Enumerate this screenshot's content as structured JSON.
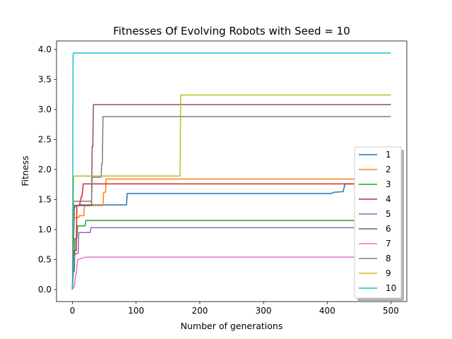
{
  "chart_data": {
    "type": "line",
    "title": "Fitnesses Of Evolving Robots with Seed = 10",
    "xlabel": "Number of generations",
    "ylabel": "Fitness",
    "xlim": [
      -25,
      525
    ],
    "ylim": [
      -0.2,
      4.14
    ],
    "xticks": [
      0,
      100,
      200,
      300,
      400,
      500
    ],
    "yticks": [
      0.0,
      0.5,
      1.0,
      1.5,
      2.0,
      2.5,
      3.0,
      3.5,
      4.0
    ],
    "xtick_labels": [
      "0",
      "100",
      "200",
      "300",
      "400",
      "500"
    ],
    "ytick_labels": [
      "0.0",
      "0.5",
      "1.0",
      "1.5",
      "2.0",
      "2.5",
      "3.0",
      "3.5",
      "4.0"
    ],
    "grid": false,
    "legend_position": "lower right",
    "series": [
      {
        "name": "1",
        "color": "#1f77b4",
        "x": [
          0,
          1,
          2,
          3,
          5,
          8,
          12,
          85,
          86,
          407,
          410,
          425,
          428,
          500
        ],
        "y": [
          0,
          0.6,
          1.0,
          1.35,
          1.4,
          1.4,
          1.41,
          1.41,
          1.6,
          1.6,
          1.62,
          1.63,
          1.76,
          1.76
        ]
      },
      {
        "name": "2",
        "color": "#ff7f0e",
        "x": [
          0,
          1,
          2,
          3,
          10,
          11,
          18,
          19,
          48,
          49,
          52,
          53,
          500
        ],
        "y": [
          0,
          0.5,
          1.05,
          1.2,
          1.2,
          1.23,
          1.23,
          1.4,
          1.4,
          1.62,
          1.62,
          1.84,
          1.84
        ]
      },
      {
        "name": "3",
        "color": "#2ca02c",
        "x": [
          0,
          1,
          3,
          4,
          7,
          8,
          20,
          21,
          500
        ],
        "y": [
          0,
          0.3,
          0.3,
          0.85,
          0.85,
          1.06,
          1.06,
          1.15,
          1.15
        ]
      },
      {
        "name": "4",
        "color": "#d62728",
        "x": [
          0,
          2,
          3,
          6,
          7,
          10,
          11,
          14,
          15,
          17,
          18,
          500
        ],
        "y": [
          0,
          0.63,
          0.65,
          0.65,
          1.4,
          1.4,
          1.4,
          1.55,
          1.55,
          1.76,
          1.76,
          1.76
        ]
      },
      {
        "name": "5",
        "color": "#9467bd",
        "x": [
          0,
          1,
          2,
          3,
          5,
          9,
          10,
          28,
          29,
          500
        ],
        "y": [
          0,
          0.2,
          0.4,
          0.55,
          0.6,
          0.6,
          0.95,
          0.95,
          1.03,
          1.03
        ]
      },
      {
        "name": "6",
        "color": "#8c564b",
        "x": [
          0,
          3,
          4,
          30,
          31,
          32,
          33,
          34,
          500
        ],
        "y": [
          0,
          1.4,
          1.4,
          1.4,
          2.38,
          2.38,
          3.08,
          3.08,
          3.08
        ]
      },
      {
        "name": "7",
        "color": "#e377c2",
        "x": [
          0,
          2,
          3,
          5,
          6,
          8,
          9,
          20,
          21,
          500
        ],
        "y": [
          0,
          0.05,
          0.05,
          0.25,
          0.25,
          0.5,
          0.5,
          0.54,
          0.54,
          0.54
        ]
      },
      {
        "name": "8",
        "color": "#7f7f7f",
        "x": [
          0,
          1,
          2,
          3,
          30,
          31,
          45,
          46,
          47,
          48,
          500
        ],
        "y": [
          0,
          0.8,
          1.47,
          1.47,
          1.47,
          1.87,
          1.87,
          2.1,
          2.1,
          2.88,
          2.88
        ]
      },
      {
        "name": "9",
        "color": "#bcbd22",
        "x": [
          0,
          1,
          2,
          3,
          169,
          170,
          500
        ],
        "y": [
          0,
          1.2,
          1.88,
          1.89,
          1.89,
          3.24,
          3.24
        ]
      },
      {
        "name": "10",
        "color": "#17becf",
        "x": [
          0,
          0.5,
          1,
          1.5,
          500
        ],
        "y": [
          0,
          1.5,
          3.9,
          3.94,
          3.94
        ]
      }
    ]
  }
}
